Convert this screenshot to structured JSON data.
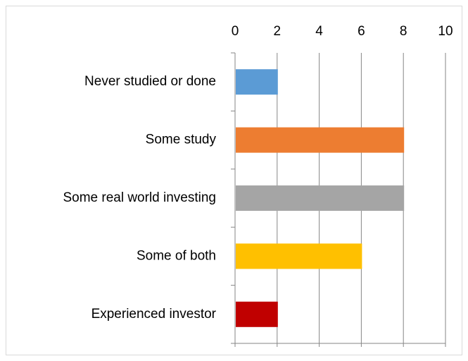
{
  "chart_data": {
    "type": "barh",
    "categories": [
      "Never studied or done",
      "Some study",
      "Some real world investing",
      "Some of both",
      "Experienced investor"
    ],
    "values": [
      2,
      8,
      8,
      6,
      2
    ],
    "colors": [
      "#5b9bd5",
      "#ed7d31",
      "#a5a5a5",
      "#ffc000",
      "#c00000"
    ],
    "xlim": [
      0,
      10
    ],
    "xticks": [
      0,
      2,
      4,
      6,
      8,
      10
    ],
    "grid": true
  }
}
